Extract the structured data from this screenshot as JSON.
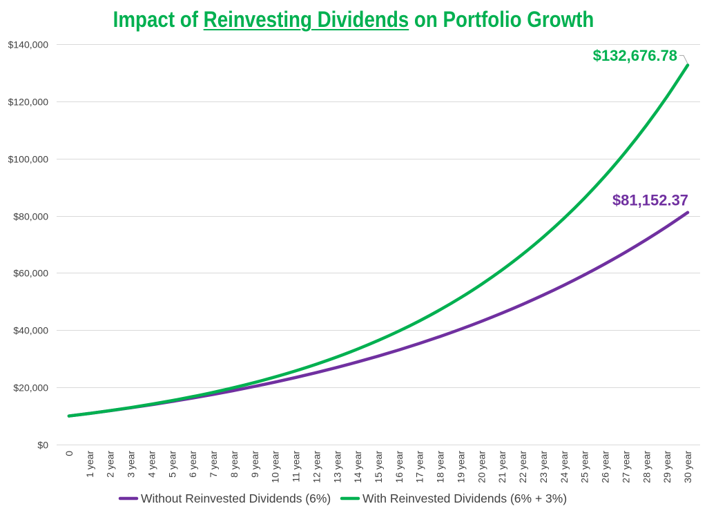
{
  "colors": {
    "title": "#00B050",
    "gridline": "#D9D9D9",
    "axis_text": "#404040",
    "leader_line": "#A6A6A6"
  },
  "chart_data": {
    "type": "line",
    "title": {
      "before": "Impact of ",
      "underlined": "Reinvesting Dividends",
      "after": " on Portfolio Growth"
    },
    "xlabel": "",
    "ylabel": "",
    "grid": true,
    "legend": "bottom",
    "ylim": [
      0,
      140000
    ],
    "yticks": [
      0,
      20000,
      40000,
      60000,
      80000,
      100000,
      120000,
      140000
    ],
    "ytick_labels": [
      "$0",
      "$20,000",
      "$40,000",
      "$60,000",
      "$80,000",
      "$100,000",
      "$120,000",
      "$140,000"
    ],
    "categories": [
      "0",
      "1 year",
      "2 year",
      "3 year",
      "4 year",
      "5 year",
      "6 year",
      "7 year",
      "8 year",
      "9 year",
      "10 year",
      "11 year",
      "12 year",
      "13 year",
      "14 year",
      "15 year",
      "16 year",
      "17 year",
      "18 year",
      "19 year",
      "20 year",
      "21 year",
      "22 year",
      "23 year",
      "24 year",
      "25 year",
      "26 year",
      "27 year",
      "28 year",
      "29 year",
      "30 year"
    ],
    "series": [
      {
        "name": "Without Reinvested Dividends (6%)",
        "color": "#7030A0",
        "end_label": "$81,152.37",
        "values": [
          10000,
          10900,
          11854,
          12865.24,
          13937.15,
          15073.38,
          16277.79,
          17554.45,
          18907.72,
          20342.18,
          21862.72,
          23474.48,
          25182.95,
          26993.92,
          28913.56,
          30948.37,
          33105.28,
          35391.59,
          37815.09,
          40383.99,
          43107.03,
          45993.45,
          49053.06,
          52296.24,
          55734.02,
          59378.06,
          63240.74,
          67335.19,
          71675.3,
          76275.82,
          81152.37
        ]
      },
      {
        "name": "With Reinvested Dividends (6% + 3%)",
        "color": "#00B050",
        "end_label": "$132,676.78",
        "values": [
          10000,
          10900,
          11881,
          12950.29,
          14115.82,
          15386.24,
          16771,
          18280.39,
          19925.63,
          21718.93,
          23673.64,
          25804.26,
          28126.65,
          30658.05,
          33417.27,
          36424.82,
          39703.06,
          43276.33,
          47171.2,
          51416.61,
          56044.11,
          61088.08,
          66586,
          72578.74,
          79110.83,
          86230.81,
          93991.58,
          102450.82,
          111671.4,
          121721.82,
          132676.78
        ]
      }
    ]
  }
}
